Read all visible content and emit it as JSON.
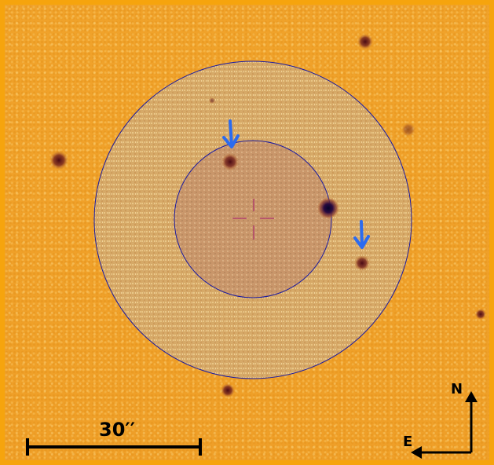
{
  "image": {
    "scale_bar_label": "30′′",
    "compass": {
      "north": "N",
      "east": "E"
    },
    "colors": {
      "border": "#f6a40d",
      "background": "#f0a22a",
      "aperture_ring": "#1a1aa0",
      "arrow": "#2b6bf0",
      "crosshair": "#b0406a",
      "annotations": "#000000"
    }
  }
}
